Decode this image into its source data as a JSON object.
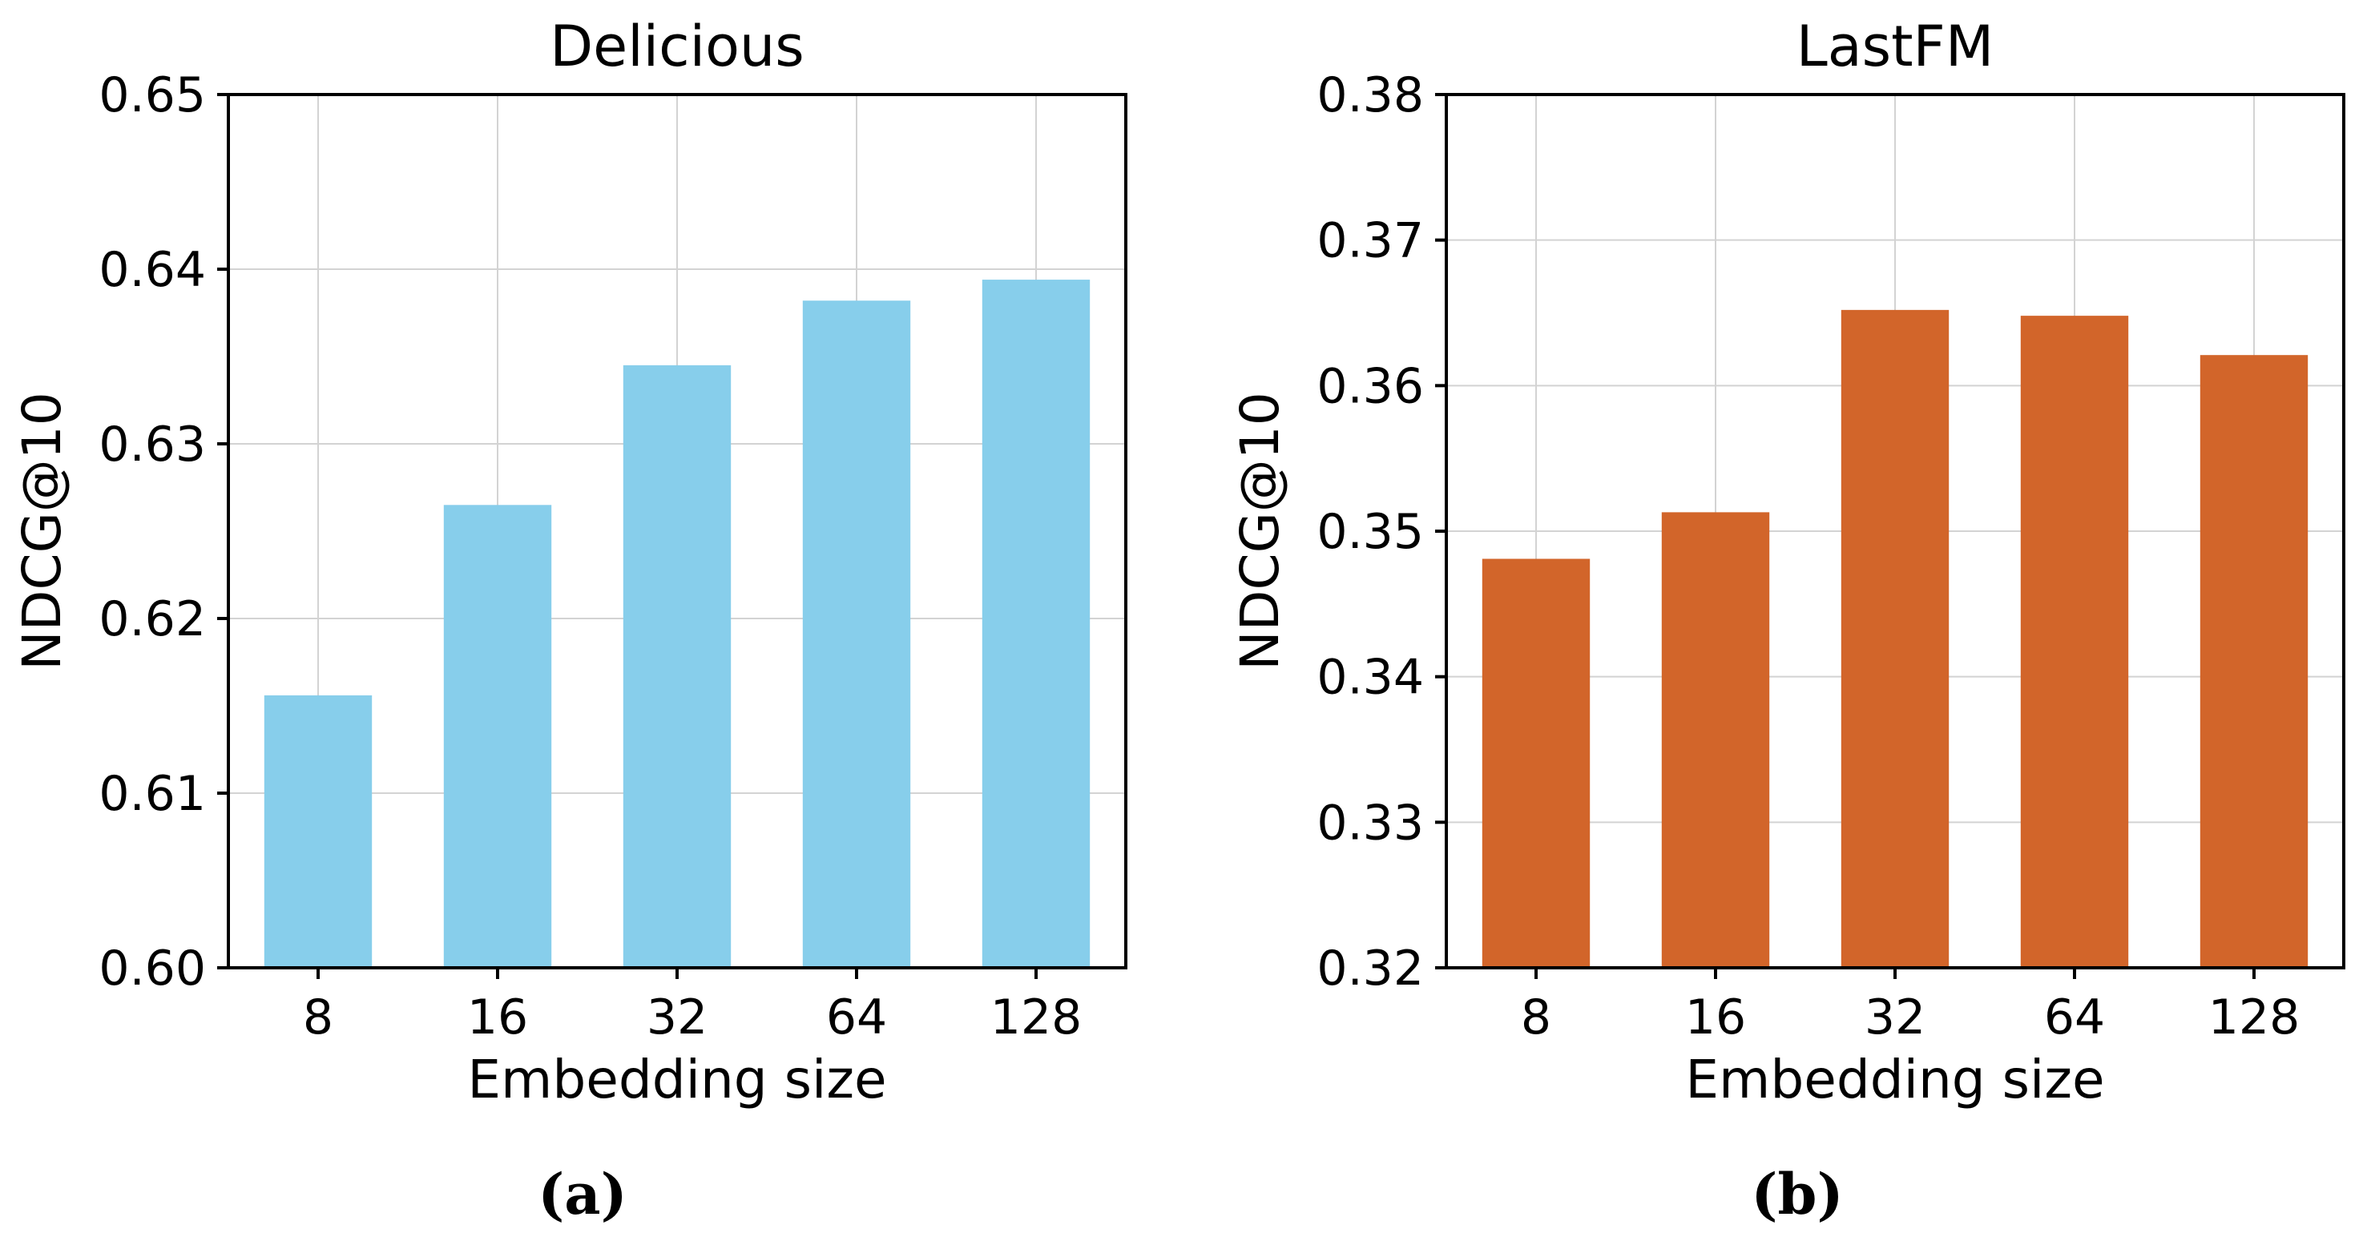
{
  "chart_data": [
    {
      "type": "bar",
      "title": "Delicious",
      "categories": [
        "8",
        "16",
        "32",
        "64",
        "128"
      ],
      "values": [
        0.6156,
        0.6265,
        0.6345,
        0.6382,
        0.6394
      ],
      "xlabel": "Embedding size",
      "ylabel": "NDCG@10",
      "ylim": [
        0.6,
        0.65
      ],
      "yticks": [
        "0.60",
        "0.61",
        "0.62",
        "0.63",
        "0.64",
        "0.65"
      ],
      "grid": true,
      "color": "#87ceeb",
      "caption": "(a)"
    },
    {
      "type": "bar",
      "title": "LastFM",
      "categories": [
        "8",
        "16",
        "32",
        "64",
        "128"
      ],
      "values": [
        0.3481,
        0.3513,
        0.3652,
        0.3648,
        0.3621
      ],
      "xlabel": "Embedding size",
      "ylabel": "NDCG@10",
      "ylim": [
        0.32,
        0.38
      ],
      "yticks": [
        "0.32",
        "0.33",
        "0.34",
        "0.35",
        "0.36",
        "0.37",
        "0.38"
      ],
      "grid": true,
      "color": "#d2652a",
      "caption": "(b)"
    }
  ]
}
